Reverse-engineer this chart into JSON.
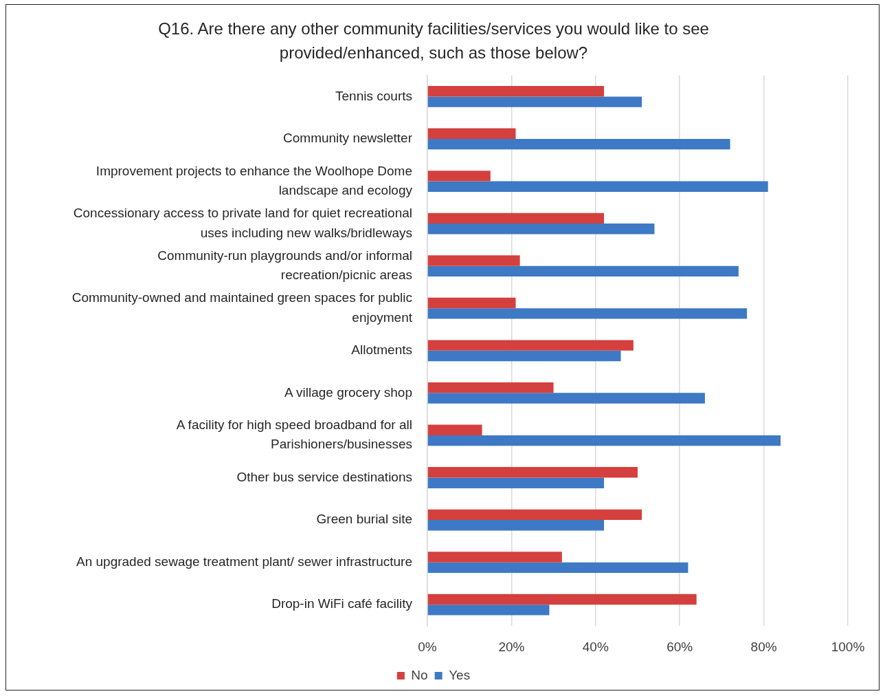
{
  "chart_data": {
    "type": "bar",
    "orientation": "horizontal",
    "title": "Q16. Are there any other community facilities/services you would like to see provided/enhanced, such as those below?",
    "categories": [
      "Tennis courts",
      "Community newsletter",
      "Improvement projects to enhance the Woolhope Dome landscape and ecology",
      "Concessionary access to private land for quiet recreational uses including new walks/bridleways",
      "Community-run playgrounds and/or informal recreation/picnic areas",
      "Community-owned and maintained green spaces for public enjoyment",
      "Allotments",
      "A village grocery shop",
      "A facility for high speed broadband for all Parishioners/businesses",
      "Other bus service destinations",
      "Green burial site",
      "An upgraded sewage treatment plant/ sewer infrastructure",
      "Drop-in WiFi café facility"
    ],
    "series": [
      {
        "name": "No",
        "color": "#d4403e",
        "values": [
          42,
          21,
          15,
          42,
          22,
          21,
          49,
          30,
          13,
          50,
          51,
          32,
          64
        ]
      },
      {
        "name": "Yes",
        "color": "#3d79c4",
        "values": [
          51,
          72,
          81,
          54,
          74,
          76,
          46,
          66,
          84,
          42,
          42,
          62,
          29
        ]
      }
    ],
    "xlim": [
      0,
      100
    ],
    "xticks": [
      {
        "value": 0,
        "label": "0%"
      },
      {
        "value": 20,
        "label": "20%"
      },
      {
        "value": 40,
        "label": "40%"
      },
      {
        "value": 60,
        "label": "60%"
      },
      {
        "value": 80,
        "label": "80%"
      },
      {
        "value": 100,
        "label": "100%"
      }
    ],
    "grid": "x",
    "legend": "bottom"
  }
}
